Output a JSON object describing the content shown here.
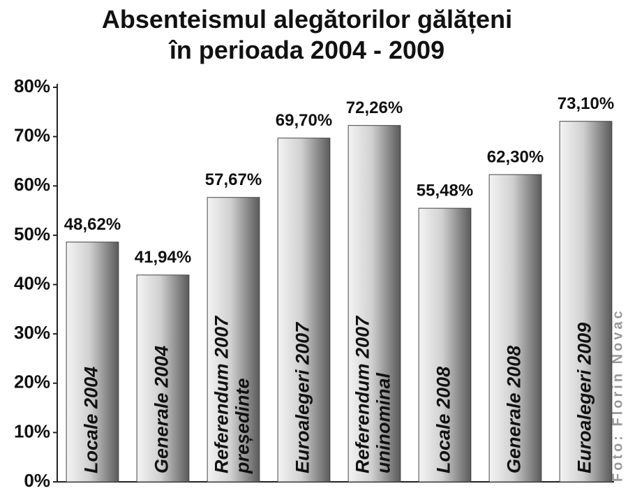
{
  "chart_data": {
    "type": "bar",
    "title": "Absenteismul alegătorilor gălățeni\nîn perioada 2004 - 2009",
    "credit": "Foto: Florin Novac",
    "categories": [
      "Locale 2004",
      "Generale 2004",
      "Referendum 2007\npreședinte",
      "Euroalegeri 2007",
      "Referendum 2007\nuninominal",
      "Locale 2008",
      "Generale 2008",
      "Euroalegeri 2009"
    ],
    "values": [
      48.62,
      41.94,
      57.67,
      69.7,
      72.26,
      55.48,
      62.3,
      73.1
    ],
    "value_labels": [
      "48,62%",
      "41,94%",
      "57,67%",
      "69,70%",
      "72,26%",
      "55,48%",
      "62,30%",
      "73,10%"
    ],
    "color": "#8a8a8a",
    "ylim": [
      0,
      80
    ],
    "yticks": [
      {
        "value": 0,
        "label": "0%"
      },
      {
        "value": 10,
        "label": "10%"
      },
      {
        "value": 20,
        "label": "20%"
      },
      {
        "value": 30,
        "label": "30%"
      },
      {
        "value": 40,
        "label": "40%"
      },
      {
        "value": 50,
        "label": "50%"
      },
      {
        "value": 60,
        "label": "60%"
      },
      {
        "value": 70,
        "label": "70%"
      },
      {
        "value": 80,
        "label": "80%"
      }
    ],
    "grid": false
  }
}
